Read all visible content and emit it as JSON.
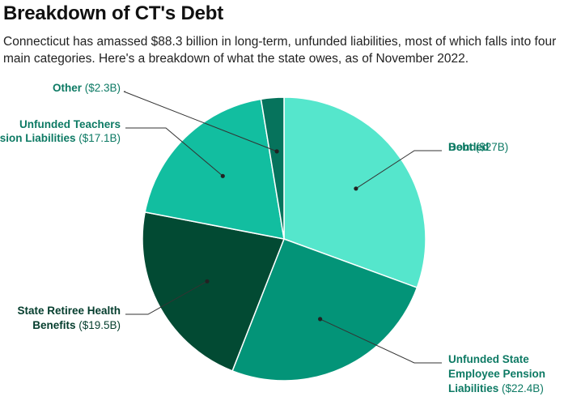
{
  "title": "Breakdown of CT's Debt",
  "subtitle": "Connecticut has amassed $88.3 billion in long-term, unfunded liabilities, most of which falls into four main categories. Here's a breakdown of what the state owes, as of November 2022.",
  "chart_data": {
    "type": "pie",
    "title": "Breakdown of CT's Debt",
    "unit": "billion USD",
    "slices": [
      {
        "name": "Bonded Debt",
        "value": 27.0,
        "value_label": "($27B)",
        "color": "#55e6cc"
      },
      {
        "name": "Unfunded State Employee Pension Liabilities",
        "value": 22.4,
        "value_label": "($22.4B)",
        "color": "#039478"
      },
      {
        "name": "State Retiree Health Benefits",
        "value": 19.5,
        "value_label": "($19.5B)",
        "color": "#024a33"
      },
      {
        "name": "Unfunded Teachers Pension Liabilities",
        "value": 17.1,
        "value_label": "($17.1B)",
        "color": "#12bea0"
      },
      {
        "name": "Other",
        "value": 2.3,
        "value_label": "($2.3B)",
        "color": "#06735c"
      }
    ],
    "start_angle": "12 o'clock",
    "direction": "clockwise",
    "label_color": "#0d7a64",
    "dark_label_color": "#043d2d",
    "slice_border_color": "#ffffff"
  }
}
